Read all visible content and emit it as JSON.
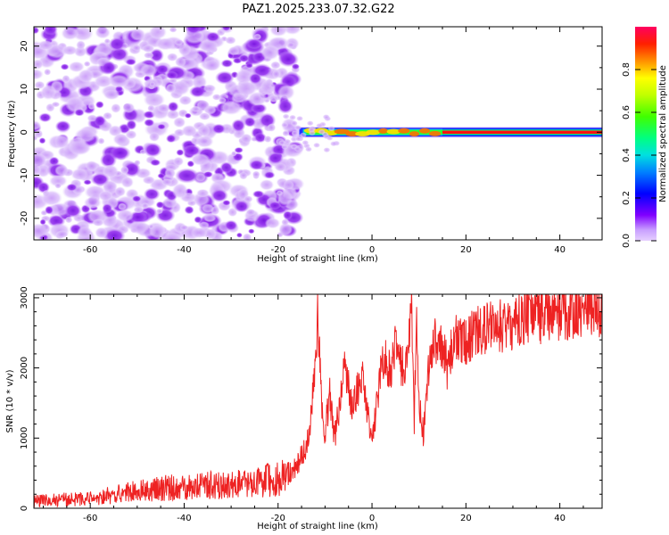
{
  "title": "PAZ1.2025.233.07.32.G22",
  "colors": {
    "axis": "#000000",
    "snr_line": "#ee2222",
    "background": "#ffffff"
  },
  "chart_data": [
    {
      "type": "heatmap",
      "id": "spectrogram",
      "xlabel": "Height of straight line (km)",
      "ylabel": "Frequency (Hz)",
      "xlim": [
        -72,
        49
      ],
      "ylim": [
        -25,
        24.5
      ],
      "xticks": [
        -60,
        -40,
        -20,
        0,
        20,
        40
      ],
      "yticks": [
        -20,
        -10,
        0,
        10,
        20
      ],
      "noise_region_x": [
        -72,
        -18
      ],
      "signal_ridge": {
        "x_start": -17,
        "x_end": 49,
        "freq_hz": 0.0,
        "description": "coherent signal near 0 Hz, amplitude increasing to ~1.0 above 15 km"
      },
      "colorbar": {
        "label": "Normalized spectral amplitude",
        "range": [
          0.0,
          1.0
        ],
        "ticks": [
          0.0,
          0.2,
          0.4,
          0.6,
          0.8
        ],
        "tick_labels": [
          "0.0",
          "0.2",
          "0.4",
          "0.6",
          "0.8"
        ]
      }
    },
    {
      "type": "line",
      "id": "snr",
      "xlabel": "Height of straight line (km)",
      "ylabel": "SNR (10 * v/v)",
      "xlim": [
        -72,
        49
      ],
      "ylim": [
        0,
        3050
      ],
      "xticks": [
        -60,
        -40,
        -20,
        0,
        20,
        40
      ],
      "yticks": [
        0,
        1000,
        2000,
        3000
      ],
      "series": [
        {
          "name": "SNR",
          "x": [
            -72,
            -70,
            -68,
            -66,
            -64,
            -62,
            -60,
            -58,
            -56,
            -54,
            -52,
            -50,
            -48,
            -46,
            -44,
            -42,
            -40,
            -38,
            -36,
            -34,
            -32,
            -30,
            -28,
            -26,
            -24,
            -22,
            -20,
            -18,
            -16,
            -14,
            -13,
            -12,
            -11.5,
            -11,
            -10.5,
            -10,
            -9,
            -8,
            -7,
            -6,
            -5,
            -4,
            -3,
            -2,
            -1,
            0,
            1,
            2,
            3,
            4,
            5,
            6,
            7,
            8,
            8.5,
            9,
            9.5,
            10,
            11,
            12,
            13,
            14,
            15,
            16,
            17,
            18,
            20,
            22,
            24,
            26,
            28,
            30,
            32,
            34,
            36,
            38,
            40,
            42,
            44,
            46,
            48,
            49
          ],
          "values": [
            100,
            110,
            120,
            120,
            130,
            130,
            140,
            160,
            180,
            200,
            220,
            240,
            260,
            270,
            290,
            300,
            310,
            320,
            320,
            330,
            330,
            340,
            340,
            360,
            380,
            400,
            420,
            450,
            600,
            900,
            1300,
            2000,
            2800,
            1900,
            1300,
            1100,
            1600,
            1000,
            1400,
            2000,
            1700,
            1400,
            1700,
            1900,
            1400,
            900,
            1500,
            2000,
            2100,
            2000,
            2300,
            2100,
            1900,
            2400,
            2900,
            1200,
            2700,
            1600,
            1000,
            2000,
            2400,
            2300,
            2300,
            2000,
            2300,
            2400,
            2400,
            2500,
            2550,
            2600,
            2600,
            2650,
            2700,
            2700,
            2750,
            2800,
            2800,
            2800,
            2850,
            2850,
            2850,
            2800
          ]
        }
      ]
    }
  ]
}
